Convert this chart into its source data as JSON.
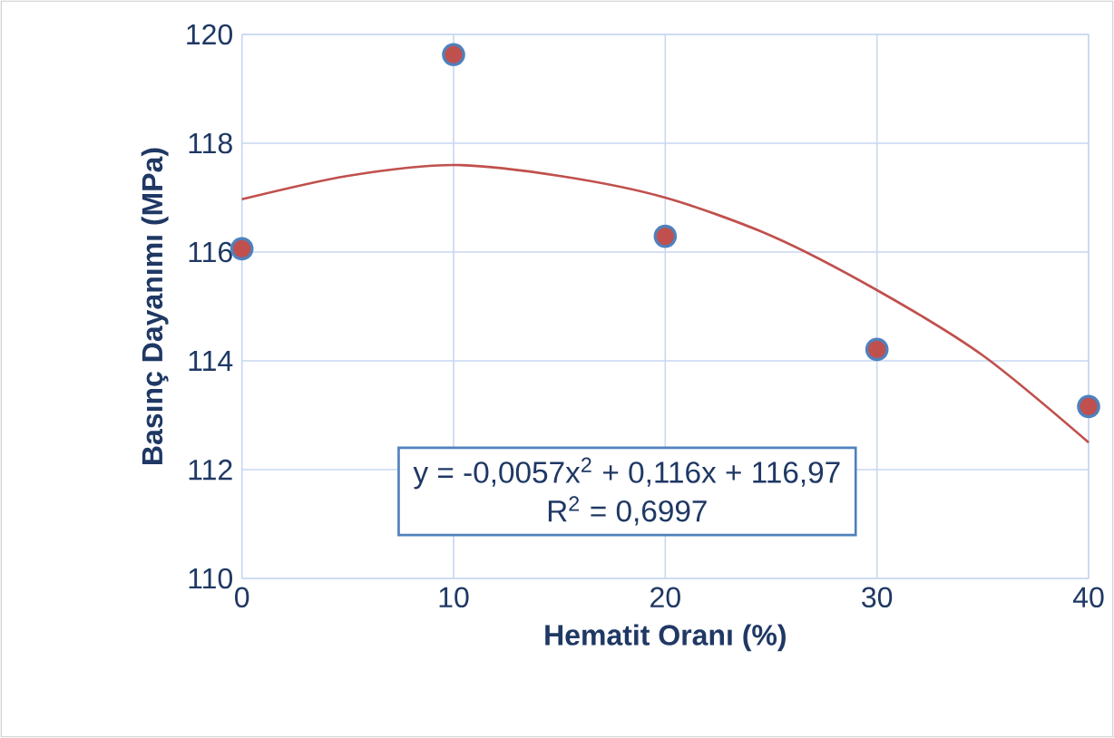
{
  "chart_data": {
    "type": "scatter",
    "xlabel": "Hematit Oranı (%)",
    "ylabel": "Basınç Dayanımı (MPa)",
    "xlim": [
      0,
      40
    ],
    "xticks": [
      0,
      10,
      20,
      30,
      40
    ],
    "ylim": [
      110,
      120
    ],
    "yticks": [
      110,
      112,
      114,
      116,
      118,
      120
    ],
    "grid": true,
    "marker": "circle",
    "series": [
      {
        "color": "#c0504d",
        "x": [
          0,
          10,
          20,
          30,
          40
        ],
        "values": [
          116.06,
          119.63,
          116.29,
          114.21,
          113.16
        ]
      },
      {
        "type": "line",
        "color": "#c0504d",
        "marker": "none",
        "x": [
          0,
          5,
          10,
          15,
          20,
          25,
          30,
          35,
          40
        ],
        "values": [
          116.97,
          117.4,
          117.6,
          117.4,
          117.0,
          116.3,
          115.3,
          114.1,
          112.5
        ]
      }
    ],
    "annotations": [
      "y = -0,0057x$^{2}$ + 0,116x + 116,97",
      "R$^{2}$ = 0,6997"
    ]
  }
}
